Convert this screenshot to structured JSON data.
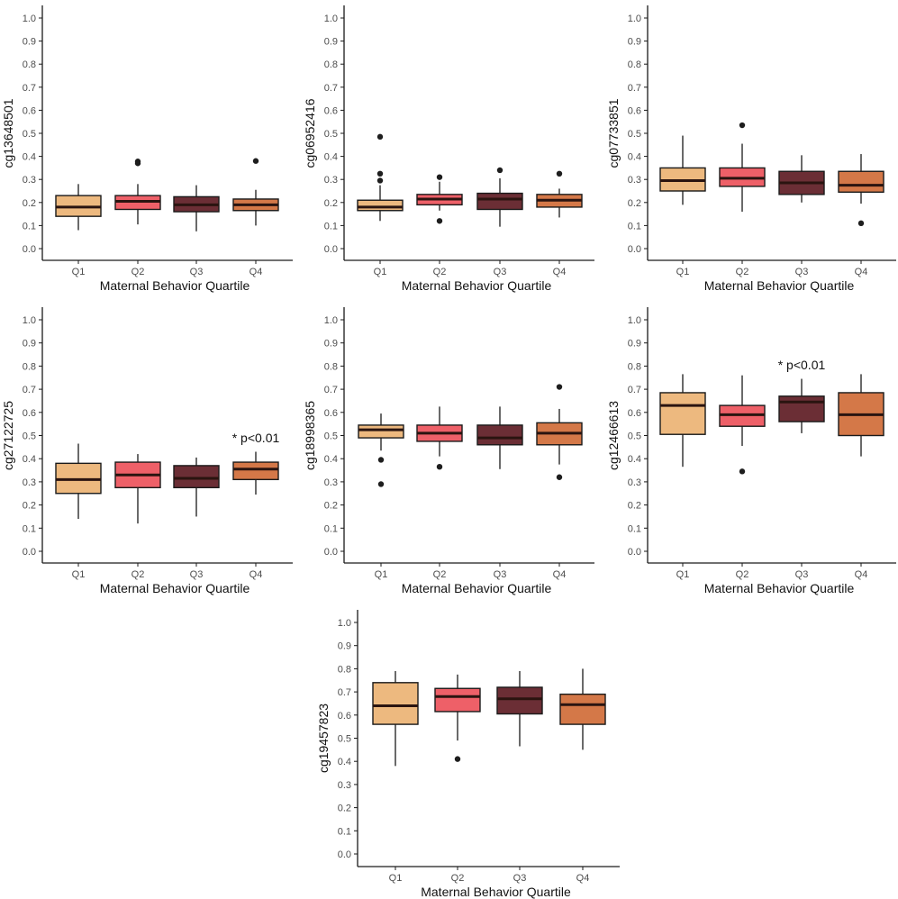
{
  "chart_data": [
    {
      "type": "boxplot",
      "ylabel": "cg13648501",
      "xlabel": "Maternal Behavior Quartile",
      "categories": [
        "Q1",
        "Q2",
        "Q3",
        "Q4"
      ],
      "ylim": [
        0.0,
        1.0
      ],
      "yticks": [
        "0.0",
        "0.1",
        "0.2",
        "0.3",
        "0.4",
        "0.5",
        "0.6",
        "0.7",
        "0.8",
        "0.9",
        "1.0"
      ],
      "boxes": [
        {
          "whisker_low": 0.08,
          "q1": 0.14,
          "median": 0.18,
          "q3": 0.23,
          "whisker_high": 0.28,
          "outliers": []
        },
        {
          "whisker_low": 0.105,
          "q1": 0.17,
          "median": 0.205,
          "q3": 0.23,
          "whisker_high": 0.28,
          "outliers": [
            0.37,
            0.378
          ]
        },
        {
          "whisker_low": 0.075,
          "q1": 0.16,
          "median": 0.19,
          "q3": 0.225,
          "whisker_high": 0.275,
          "outliers": []
        },
        {
          "whisker_low": 0.1,
          "q1": 0.165,
          "median": 0.19,
          "q3": 0.215,
          "whisker_high": 0.255,
          "outliers": [
            0.38
          ]
        }
      ],
      "annotation": null
    },
    {
      "type": "boxplot",
      "ylabel": "cg06952416",
      "xlabel": "Maternal Behavior Quartile",
      "categories": [
        "Q1",
        "Q2",
        "Q3",
        "Q4"
      ],
      "ylim": [
        0.0,
        1.0
      ],
      "yticks": [
        "0.0",
        "0.1",
        "0.2",
        "0.3",
        "0.4",
        "0.5",
        "0.6",
        "0.7",
        "0.8",
        "0.9",
        "1.0"
      ],
      "boxes": [
        {
          "whisker_low": 0.12,
          "q1": 0.165,
          "median": 0.18,
          "q3": 0.21,
          "whisker_high": 0.275,
          "outliers": [
            0.485,
            0.325,
            0.295
          ]
        },
        {
          "whisker_low": 0.165,
          "q1": 0.19,
          "median": 0.215,
          "q3": 0.235,
          "whisker_high": 0.29,
          "outliers": [
            0.31,
            0.12
          ]
        },
        {
          "whisker_low": 0.095,
          "q1": 0.17,
          "median": 0.215,
          "q3": 0.24,
          "whisker_high": 0.305,
          "outliers": [
            0.34
          ]
        },
        {
          "whisker_low": 0.135,
          "q1": 0.18,
          "median": 0.21,
          "q3": 0.235,
          "whisker_high": 0.26,
          "outliers": [
            0.325
          ]
        }
      ],
      "annotation": null
    },
    {
      "type": "boxplot",
      "ylabel": "cg07733851",
      "xlabel": "Maternal Behavior Quartile",
      "categories": [
        "Q1",
        "Q2",
        "Q3",
        "Q4"
      ],
      "ylim": [
        0.0,
        1.0
      ],
      "yticks": [
        "0.0",
        "0.1",
        "0.2",
        "0.3",
        "0.4",
        "0.5",
        "0.6",
        "0.7",
        "0.8",
        "0.9",
        "1.0"
      ],
      "boxes": [
        {
          "whisker_low": 0.19,
          "q1": 0.25,
          "median": 0.295,
          "q3": 0.35,
          "whisker_high": 0.49,
          "outliers": []
        },
        {
          "whisker_low": 0.16,
          "q1": 0.27,
          "median": 0.305,
          "q3": 0.35,
          "whisker_high": 0.455,
          "outliers": [
            0.535
          ]
        },
        {
          "whisker_low": 0.2,
          "q1": 0.235,
          "median": 0.285,
          "q3": 0.335,
          "whisker_high": 0.405,
          "outliers": []
        },
        {
          "whisker_low": 0.195,
          "q1": 0.245,
          "median": 0.275,
          "q3": 0.335,
          "whisker_high": 0.41,
          "outliers": [
            0.11
          ]
        }
      ],
      "annotation": null
    },
    {
      "type": "boxplot",
      "ylabel": "cg27122725",
      "xlabel": "Maternal Behavior Quartile",
      "categories": [
        "Q1",
        "Q2",
        "Q3",
        "Q4"
      ],
      "ylim": [
        0.0,
        1.0
      ],
      "yticks": [
        "0.0",
        "0.1",
        "0.2",
        "0.3",
        "0.4",
        "0.5",
        "0.6",
        "0.7",
        "0.8",
        "0.9",
        "1.0"
      ],
      "boxes": [
        {
          "whisker_low": 0.14,
          "q1": 0.25,
          "median": 0.31,
          "q3": 0.38,
          "whisker_high": 0.465,
          "outliers": []
        },
        {
          "whisker_low": 0.12,
          "q1": 0.275,
          "median": 0.33,
          "q3": 0.385,
          "whisker_high": 0.42,
          "outliers": []
        },
        {
          "whisker_low": 0.15,
          "q1": 0.275,
          "median": 0.315,
          "q3": 0.37,
          "whisker_high": 0.405,
          "outliers": []
        },
        {
          "whisker_low": 0.245,
          "q1": 0.31,
          "median": 0.355,
          "q3": 0.385,
          "whisker_high": 0.43,
          "outliers": []
        }
      ],
      "annotation": {
        "text": "* p<0.01",
        "category": "Q4",
        "y": 0.49
      }
    },
    {
      "type": "boxplot",
      "ylabel": "cg18998365",
      "xlabel": "Maternal Behavior Quartile",
      "categories": [
        "Q1",
        "Q2",
        "Q3",
        "Q4"
      ],
      "ylim": [
        0.0,
        1.0
      ],
      "yticks": [
        "0.0",
        "0.1",
        "0.2",
        "0.3",
        "0.4",
        "0.5",
        "0.6",
        "0.7",
        "0.8",
        "0.9",
        "1.0"
      ],
      "boxes": [
        {
          "whisker_low": 0.435,
          "q1": 0.49,
          "median": 0.525,
          "q3": 0.545,
          "whisker_high": 0.595,
          "outliers": [
            0.395,
            0.29
          ]
        },
        {
          "whisker_low": 0.41,
          "q1": 0.475,
          "median": 0.51,
          "q3": 0.545,
          "whisker_high": 0.625,
          "outliers": [
            0.365
          ]
        },
        {
          "whisker_low": 0.355,
          "q1": 0.46,
          "median": 0.49,
          "q3": 0.545,
          "whisker_high": 0.625,
          "outliers": []
        },
        {
          "whisker_low": 0.375,
          "q1": 0.46,
          "median": 0.51,
          "q3": 0.555,
          "whisker_high": 0.615,
          "outliers": [
            0.71,
            0.32
          ]
        }
      ],
      "annotation": null
    },
    {
      "type": "boxplot",
      "ylabel": "cg12466613",
      "xlabel": "Maternal Behavior Quartile",
      "categories": [
        "Q1",
        "Q2",
        "Q3",
        "Q4"
      ],
      "ylim": [
        0.0,
        1.0
      ],
      "yticks": [
        "0.0",
        "0.1",
        "0.2",
        "0.3",
        "0.4",
        "0.5",
        "0.6",
        "0.7",
        "0.8",
        "0.9",
        "1.0"
      ],
      "boxes": [
        {
          "whisker_low": 0.365,
          "q1": 0.505,
          "median": 0.63,
          "q3": 0.685,
          "whisker_high": 0.765,
          "outliers": []
        },
        {
          "whisker_low": 0.455,
          "q1": 0.54,
          "median": 0.59,
          "q3": 0.63,
          "whisker_high": 0.76,
          "outliers": [
            0.345
          ]
        },
        {
          "whisker_low": 0.51,
          "q1": 0.56,
          "median": 0.645,
          "q3": 0.67,
          "whisker_high": 0.745,
          "outliers": []
        },
        {
          "whisker_low": 0.41,
          "q1": 0.5,
          "median": 0.59,
          "q3": 0.685,
          "whisker_high": 0.765,
          "outliers": []
        }
      ],
      "annotation": {
        "text": "* p<0.01",
        "category": "Q3",
        "y": 0.805
      }
    },
    {
      "type": "boxplot",
      "ylabel": "cg19457823",
      "xlabel": "Maternal Behavior Quartile",
      "categories": [
        "Q1",
        "Q2",
        "Q3",
        "Q4"
      ],
      "ylim": [
        0.0,
        1.0
      ],
      "yticks": [
        "0.0",
        "0.1",
        "0.2",
        "0.3",
        "0.4",
        "0.5",
        "0.6",
        "0.7",
        "0.8",
        "0.9",
        "1.0"
      ],
      "boxes": [
        {
          "whisker_low": 0.38,
          "q1": 0.56,
          "median": 0.64,
          "q3": 0.74,
          "whisker_high": 0.79,
          "outliers": []
        },
        {
          "whisker_low": 0.49,
          "q1": 0.615,
          "median": 0.68,
          "q3": 0.715,
          "whisker_high": 0.775,
          "outliers": [
            0.41
          ]
        },
        {
          "whisker_low": 0.465,
          "q1": 0.605,
          "median": 0.67,
          "q3": 0.72,
          "whisker_high": 0.79,
          "outliers": []
        },
        {
          "whisker_low": 0.45,
          "q1": 0.56,
          "median": 0.645,
          "q3": 0.69,
          "whisker_high": 0.8,
          "outliers": []
        }
      ],
      "annotation": null
    }
  ],
  "colors": {
    "Q1": "#EDB97F",
    "Q2": "#EE6068",
    "Q3": "#6B2E35",
    "Q4": "#D47848",
    "line": "#1a1a1a",
    "median": "#2a1410"
  }
}
